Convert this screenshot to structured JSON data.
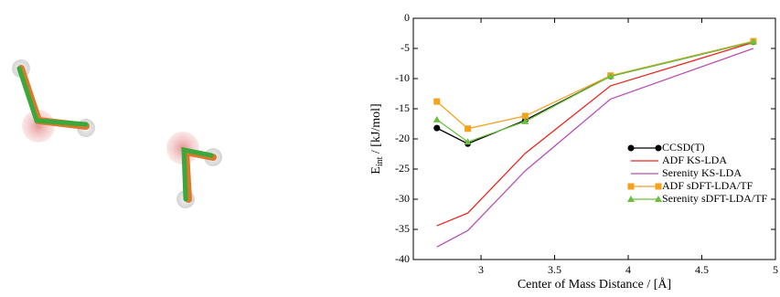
{
  "chart_data": {
    "type": "line",
    "xlabel": "Center of Mass Distance / [Å]",
    "ylabel": "E",
    "ylabel_sub": "int",
    "ylabel_unit": " / [kJ/mol]",
    "x": [
      2.7,
      2.91,
      3.3,
      3.88,
      4.85
    ],
    "series": [
      {
        "name": "CCSD(T)",
        "color": "#000000",
        "marker": "circle",
        "values": [
          -18.2,
          -20.8,
          -16.9,
          -9.6,
          -3.9
        ]
      },
      {
        "name": "ADF KS-LDA",
        "color": "#e8261e",
        "marker": "none",
        "values": [
          -34.4,
          -32.3,
          -22.4,
          -11.2,
          -4.0
        ]
      },
      {
        "name": "Serenity KS-LDA",
        "color": "#b94fb5",
        "marker": "none",
        "values": [
          -37.9,
          -35.2,
          -25.3,
          -13.4,
          -5.0
        ]
      },
      {
        "name": "ADF sDFT-LDA/TF",
        "color": "#f5a21b",
        "marker": "square",
        "values": [
          -13.8,
          -18.3,
          -16.2,
          -9.5,
          -3.8
        ]
      },
      {
        "name": "Serenity sDFT-LDA/TF",
        "color": "#6cbf3e",
        "marker": "triangle",
        "values": [
          -16.8,
          -20.5,
          -17.1,
          -9.6,
          -3.9
        ]
      }
    ],
    "xlim": [
      2.54,
      5
    ],
    "xticks": [
      3,
      3.5,
      4,
      4.5,
      5
    ],
    "ylim": [
      -40,
      0
    ],
    "yticks": [
      0,
      -5,
      -10,
      -15,
      -20,
      -25,
      -30,
      -35,
      -40
    ],
    "legend": "center right"
  }
}
